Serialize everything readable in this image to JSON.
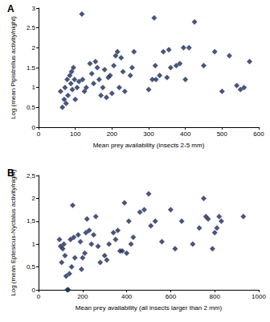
{
  "chart_data": [
    {
      "type": "scatter",
      "title": "A",
      "x_label": "Mean prey availability (insects 2-5 mm)",
      "y_label": "Log (mean Pipistrellus activity/night)",
      "x": [
        60,
        65,
        70,
        72,
        75,
        78,
        80,
        85,
        88,
        90,
        92,
        95,
        98,
        100,
        105,
        110,
        118,
        120,
        125,
        130,
        140,
        145,
        150,
        155,
        160,
        165,
        170,
        175,
        180,
        185,
        190,
        195,
        200,
        205,
        210,
        215,
        220,
        225,
        230,
        235,
        250,
        255,
        260,
        300,
        310,
        315,
        318,
        320,
        330,
        340,
        350,
        355,
        360,
        375,
        385,
        395,
        400,
        410,
        425,
        450,
        480,
        500,
        520,
        540,
        550,
        560,
        575
      ],
      "values": [
        0.9,
        0.5,
        0.7,
        1.0,
        0.6,
        1.2,
        0.8,
        1.3,
        1.1,
        1.4,
        0.95,
        1.5,
        1.2,
        0.7,
        1.0,
        1.15,
        2.85,
        1.2,
        0.9,
        1.0,
        1.6,
        1.35,
        1.1,
        1.65,
        1.5,
        1.2,
        0.8,
        1.0,
        1.45,
        0.75,
        1.25,
        1.3,
        0.85,
        1.55,
        1.8,
        1.9,
        1.0,
        1.75,
        1.4,
        0.9,
        1.3,
        1.5,
        1.9,
        0.95,
        1.2,
        2.75,
        1.55,
        1.2,
        1.3,
        1.9,
        1.25,
        1.95,
        1.5,
        1.55,
        1.6,
        2.0,
        1.2,
        2.0,
        2.65,
        1.55,
        1.9,
        0.9,
        1.8,
        1.05,
        0.95,
        1.0,
        1.65
      ],
      "color": "#1c2a5a",
      "marker": "diamond",
      "grid": false,
      "xlim": [
        0,
        600
      ],
      "xticks": [
        0,
        100,
        200,
        300,
        400,
        500,
        600
      ],
      "ylim": [
        0,
        3
      ],
      "yticks": [
        0,
        0.5,
        1,
        1.5,
        2,
        2.5,
        3
      ]
    },
    {
      "type": "scatter",
      "title": "B",
      "x_label": "Mean prey availability (all insects larger than 2 mm)",
      "y_label": "Log (mean Eptesicus-Nyctalus activity/night)",
      "x": [
        95,
        100,
        105,
        110,
        115,
        120,
        125,
        130,
        135,
        140,
        145,
        150,
        155,
        160,
        165,
        180,
        190,
        195,
        200,
        210,
        215,
        220,
        230,
        240,
        250,
        260,
        270,
        280,
        300,
        310,
        320,
        340,
        350,
        360,
        370,
        380,
        390,
        400,
        410,
        420,
        430,
        460,
        480,
        500,
        510,
        530,
        560,
        600,
        620,
        650,
        700,
        730,
        750,
        760,
        770,
        790,
        800,
        810,
        820,
        830,
        930
      ],
      "values": [
        1.1,
        0.95,
        0.6,
        0.9,
        1.0,
        0.75,
        0.3,
        0.0,
        0.0,
        0.35,
        1.1,
        0.5,
        1.85,
        1.15,
        0.7,
        1.2,
        1.05,
        0.45,
        0.7,
        0.8,
        1.25,
        1.55,
        1.3,
        1.0,
        1.2,
        1.6,
        0.95,
        0.6,
        0.75,
        0.65,
        1.0,
        1.25,
        1.1,
        1.3,
        0.85,
        0.85,
        1.9,
        0.8,
        1.5,
        1.0,
        1.15,
        1.7,
        1.75,
        2.1,
        1.4,
        1.5,
        1.05,
        1.75,
        0.9,
        1.5,
        1.0,
        1.35,
        2.0,
        1.6,
        1.55,
        0.9,
        1.25,
        1.35,
        1.6,
        1.5,
        1.6
      ],
      "color": "#1c2a5a",
      "marker": "diamond",
      "grid": false,
      "xlim": [
        0,
        1000
      ],
      "xticks": [
        0,
        200,
        400,
        600,
        800,
        1000
      ],
      "ylim": [
        0,
        2.5
      ],
      "yticks": [
        0,
        {
          "value": 0.5,
          "label": "0,5"
        },
        1,
        {
          "value": 1.5,
          "label": "1,5"
        },
        2,
        {
          "value": 2.5,
          "label": "2,5"
        }
      ]
    }
  ]
}
